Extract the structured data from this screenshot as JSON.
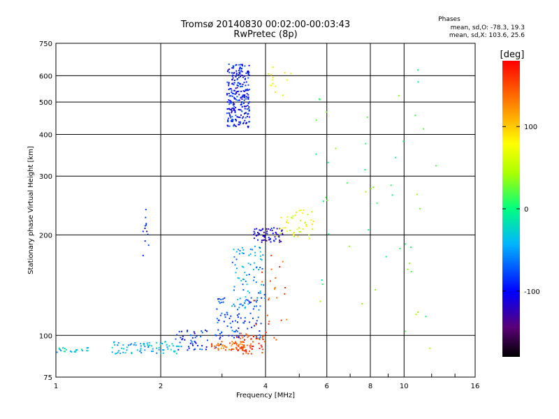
{
  "chart_data": {
    "type": "scatter",
    "title": "Tromsø 20140830 00:02:00-00:03:43",
    "subtitle": "RwPretec (8p)",
    "xlabel": "Frequency [MHz]",
    "ylabel": "Stationary phase Virtual Height [km]",
    "x_scale": "log2",
    "y_scale": "log",
    "xlim": [
      1,
      16
    ],
    "ylim": [
      75,
      750
    ],
    "x_ticks": [
      1,
      2,
      4,
      6,
      8,
      10,
      16
    ],
    "y_ticks": [
      75,
      100,
      200,
      300,
      400,
      500,
      600,
      750
    ],
    "grid": true,
    "info": {
      "heading": "Phases",
      "line1": "mean, sd,O: -78.3, 19.3",
      "line2": "mean, sd,X: 103.6, 25.6"
    },
    "colorbar": {
      "label": "[deg]",
      "range": [
        -180,
        180
      ],
      "ticks": [
        100,
        0,
        -100
      ]
    },
    "regions": [
      {
        "fmin": 1.0,
        "fmax": 1.25,
        "hmin": 89,
        "hmax": 92,
        "phase": -30,
        "n": 25
      },
      {
        "fmin": 1.45,
        "fmax": 2.3,
        "hmin": 88,
        "hmax": 96,
        "phase": -40,
        "n": 80
      },
      {
        "fmin": 2.2,
        "fmax": 3.0,
        "hmin": 90,
        "hmax": 104,
        "phase": -85,
        "n": 55
      },
      {
        "fmin": 2.8,
        "fmax": 3.5,
        "hmin": 90,
        "hmax": 96,
        "phase": 140,
        "n": 60
      },
      {
        "fmin": 3.3,
        "fmax": 4.0,
        "hmin": 88,
        "hmax": 102,
        "phase": 160,
        "n": 55
      },
      {
        "fmin": 2.9,
        "fmax": 3.9,
        "hmin": 98,
        "hmax": 130,
        "phase": -80,
        "n": 90
      },
      {
        "fmin": 3.2,
        "fmax": 4.0,
        "hmin": 120,
        "hmax": 185,
        "phase": -50,
        "n": 80
      },
      {
        "fmin": 3.7,
        "fmax": 4.5,
        "hmin": 190,
        "hmax": 210,
        "phase": -110,
        "n": 60
      },
      {
        "fmin": 4.3,
        "fmax": 5.5,
        "hmin": 195,
        "hmax": 240,
        "phase": 70,
        "n": 45
      },
      {
        "fmin": 3.7,
        "fmax": 4.8,
        "hmin": 95,
        "hmax": 180,
        "phase": 150,
        "n": 25
      },
      {
        "fmin": 3.1,
        "fmax": 3.6,
        "hmin": 420,
        "hmax": 650,
        "phase": -95,
        "n": 260
      },
      {
        "fmin": 4.0,
        "fmax": 4.8,
        "hmin": 520,
        "hmax": 640,
        "phase": 80,
        "n": 14
      },
      {
        "fmin": 1.75,
        "fmax": 1.85,
        "hmin": 170,
        "hmax": 255,
        "phase": -100,
        "n": 12
      },
      {
        "fmin": 5.5,
        "fmax": 12.5,
        "hmin": 90,
        "hmax": 650,
        "phase": 20,
        "n": 50
      }
    ]
  }
}
